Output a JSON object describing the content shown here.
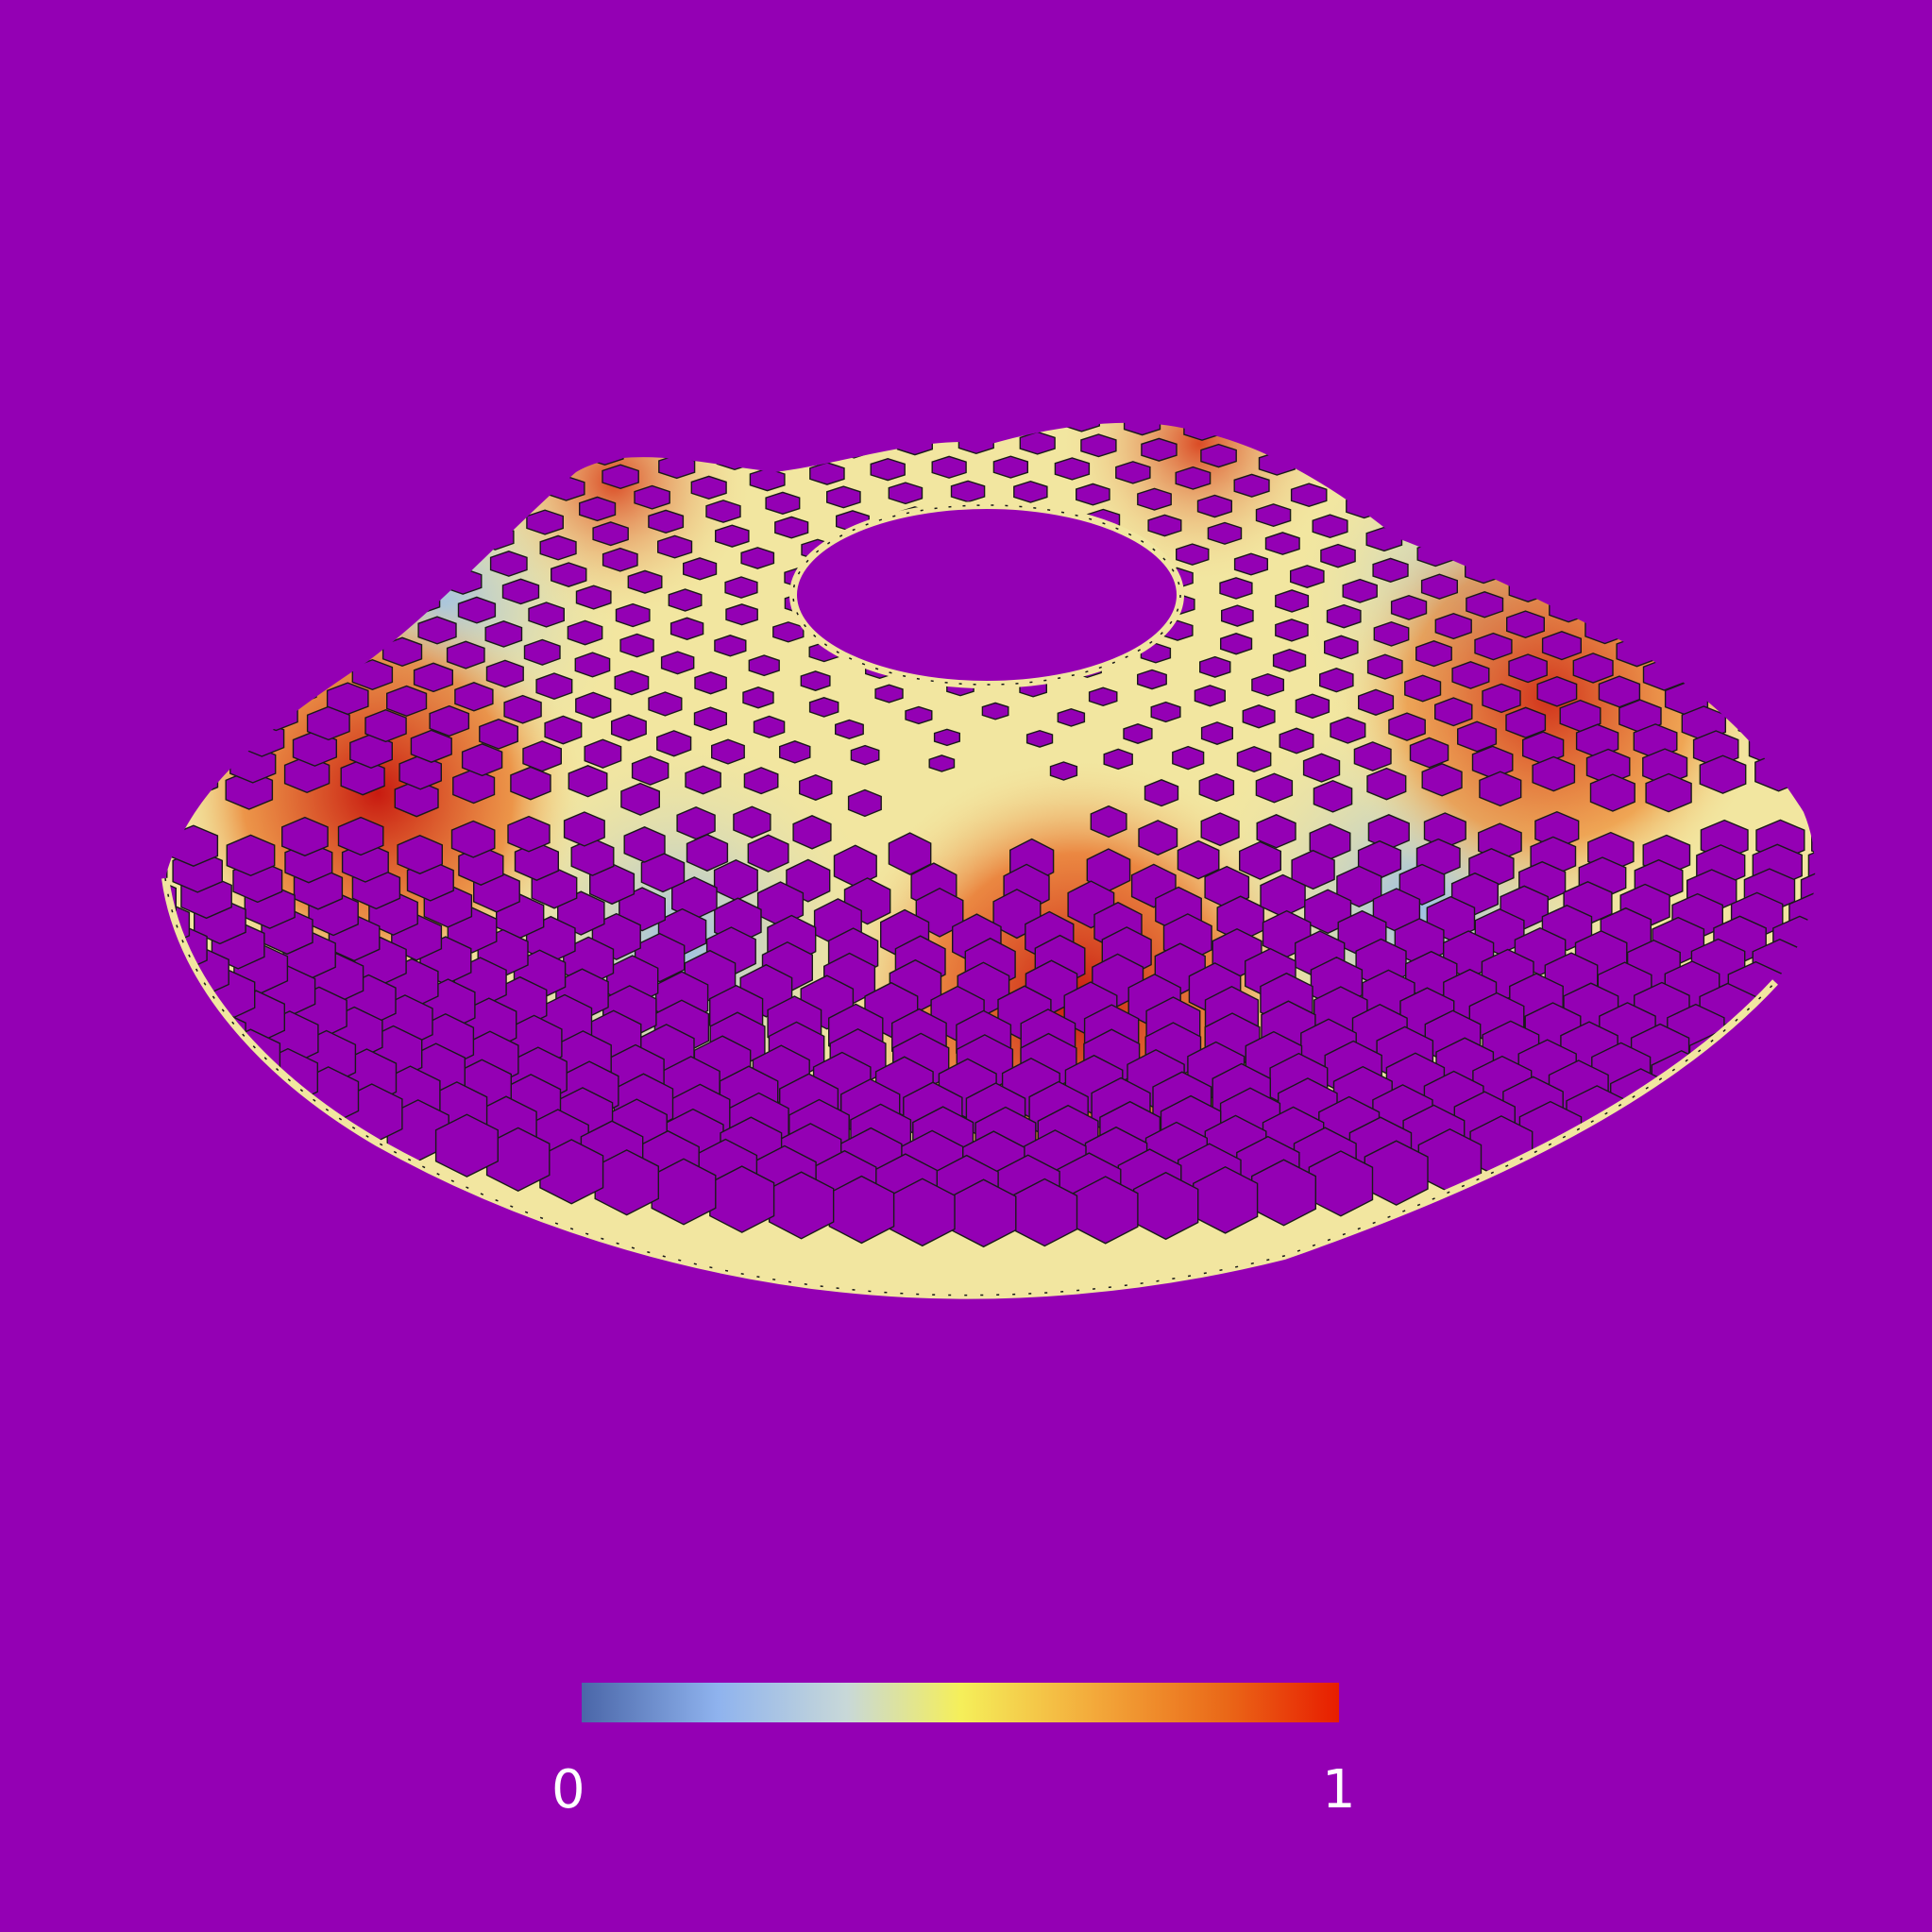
{
  "background_color": "#9400b4",
  "colorbar": {
    "min_label": "0",
    "max_label": "1",
    "gradient_stops": [
      "#4a66a8",
      "#8fb3ee",
      "#c8d8d8",
      "#f5ef5a",
      "#f3a83a",
      "#ea6818",
      "#e81d00"
    ]
  },
  "mesh": {
    "description_colors": {
      "tube_outline": "#1a1a1a",
      "low": "#9fc3e8",
      "mid": "#f2e6a0",
      "high": "#d62a1c"
    }
  }
}
